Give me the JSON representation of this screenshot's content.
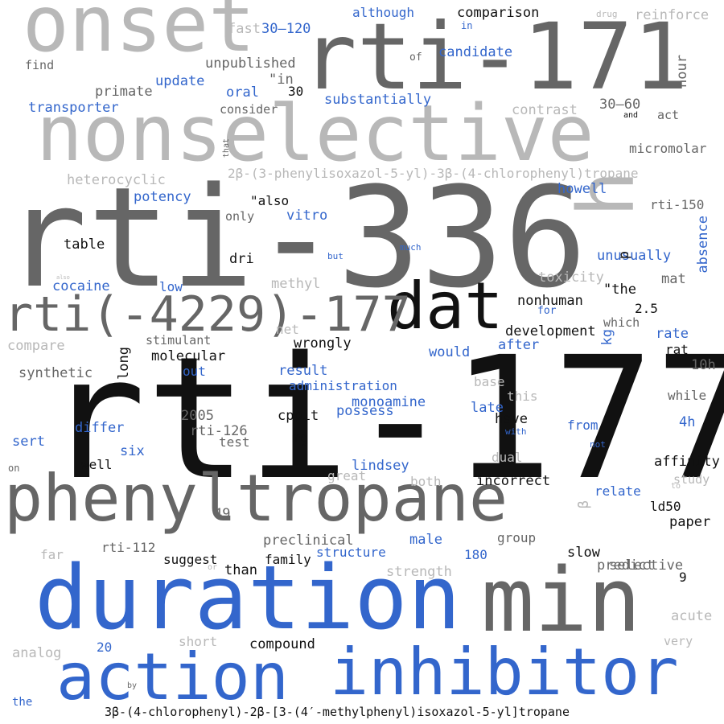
{
  "palette": {
    "black": "#111111",
    "dark_gray": "#666666",
    "light_gray": "#b8b8b8",
    "blue": "#3366cc"
  },
  "words": [
    {
      "text": "onset",
      "color": "light_gray"
    },
    {
      "text": "rti-171",
      "color": "dark_gray"
    },
    {
      "text": "nonselective",
      "color": "light_gray"
    },
    {
      "text": "rti-336",
      "color": "dark_gray"
    },
    {
      "text": "h",
      "color": "light_gray"
    },
    {
      "text": "dat",
      "color": "black"
    },
    {
      "text": "rti(-4229)-177",
      "color": "dark_gray"
    },
    {
      "text": "rti-177",
      "color": "black"
    },
    {
      "text": "phenyltropane",
      "color": "dark_gray"
    },
    {
      "text": "duration",
      "color": "blue"
    },
    {
      "text": "min",
      "color": "dark_gray"
    },
    {
      "text": "action",
      "color": "blue"
    },
    {
      "text": "inhibitor",
      "color": "blue"
    },
    {
      "text": "3β-(4-chlorophenyl)-2β-[3-(4′-methylphenyl)isoxazol-5-yl]tropane",
      "color": "black"
    },
    {
      "text": "2β-(3-phenylisoxazol-5-yl)-3β-(4-chlorophenyl)tropane",
      "color": "light_gray"
    },
    {
      "text": "although",
      "color": "blue"
    },
    {
      "text": "comparison",
      "color": "black"
    },
    {
      "text": "drug",
      "color": "light_gray"
    },
    {
      "text": "reinforce",
      "color": "light_gray"
    },
    {
      "text": "in",
      "color": "blue"
    },
    {
      "text": "fast",
      "color": "light_gray"
    },
    {
      "text": "30–120",
      "color": "blue"
    },
    {
      "text": "hour",
      "color": "dark_gray"
    },
    {
      "text": "find",
      "color": "dark_gray"
    },
    {
      "text": "of",
      "color": "dark_gray"
    },
    {
      "text": "candidate",
      "color": "blue"
    },
    {
      "text": "unpublished",
      "color": "dark_gray"
    },
    {
      "text": "\"in",
      "color": "dark_gray"
    },
    {
      "text": "update",
      "color": "blue"
    },
    {
      "text": "primate",
      "color": "dark_gray"
    },
    {
      "text": "oral",
      "color": "blue"
    },
    {
      "text": "30",
      "color": "black"
    },
    {
      "text": "substantially",
      "color": "blue"
    },
    {
      "text": "transporter",
      "color": "blue"
    },
    {
      "text": "consider",
      "color": "dark_gray"
    },
    {
      "text": "contrast",
      "color": "light_gray"
    },
    {
      "text": "30–60",
      "color": "dark_gray"
    },
    {
      "text": "and",
      "color": "black"
    },
    {
      "text": "act",
      "color": "dark_gray"
    },
    {
      "text": "that",
      "color": "dark_gray"
    },
    {
      "text": "micromolar",
      "color": "dark_gray"
    },
    {
      "text": "heterocyclic",
      "color": "light_gray"
    },
    {
      "text": "potency",
      "color": "blue"
    },
    {
      "text": "\"also",
      "color": "black"
    },
    {
      "text": "howell",
      "color": "blue"
    },
    {
      "text": "rti-150",
      "color": "dark_gray"
    },
    {
      "text": "only",
      "color": "dark_gray"
    },
    {
      "text": "vitro",
      "color": "blue"
    },
    {
      "text": "absence",
      "color": "blue"
    },
    {
      "text": "table",
      "color": "black"
    },
    {
      "text": "dri",
      "color": "black"
    },
    {
      "text": "but",
      "color": "blue"
    },
    {
      "text": "much",
      "color": "blue"
    },
    {
      "text": "unusually",
      "color": "blue"
    },
    {
      "text": "p",
      "color": "black"
    },
    {
      "text": "also",
      "color": "light_gray"
    },
    {
      "text": "cocaine",
      "color": "blue"
    },
    {
      "text": "low",
      "color": "blue"
    },
    {
      "text": "methyl",
      "color": "light_gray"
    },
    {
      "text": "toxicity",
      "color": "light_gray"
    },
    {
      "text": "mat",
      "color": "dark_gray"
    },
    {
      "text": "\"the",
      "color": "black"
    },
    {
      "text": "nonhuman",
      "color": "black"
    },
    {
      "text": "for",
      "color": "blue"
    },
    {
      "text": "2.5",
      "color": "black"
    },
    {
      "text": "which",
      "color": "dark_gray"
    },
    {
      "text": "net",
      "color": "light_gray"
    },
    {
      "text": "stimulant",
      "color": "dark_gray"
    },
    {
      "text": "development",
      "color": "black"
    },
    {
      "text": "kg",
      "color": "blue"
    },
    {
      "text": "rate",
      "color": "blue"
    },
    {
      "text": "compare",
      "color": "light_gray"
    },
    {
      "text": "wrongly",
      "color": "black"
    },
    {
      "text": "after",
      "color": "blue"
    },
    {
      "text": "rat",
      "color": "black"
    },
    {
      "text": "long",
      "color": "black"
    },
    {
      "text": "molecular",
      "color": "black"
    },
    {
      "text": "would",
      "color": "blue"
    },
    {
      "text": "synthetic",
      "color": "dark_gray"
    },
    {
      "text": "out",
      "color": "blue"
    },
    {
      "text": "result",
      "color": "blue"
    },
    {
      "text": "10h",
      "color": "dark_gray"
    },
    {
      "text": "administration",
      "color": "blue"
    },
    {
      "text": "base",
      "color": "light_gray"
    },
    {
      "text": "while",
      "color": "dark_gray"
    },
    {
      "text": "monoamine",
      "color": "blue"
    },
    {
      "text": "this",
      "color": "light_gray"
    },
    {
      "text": "late",
      "color": "blue"
    },
    {
      "text": "2005",
      "color": "dark_gray"
    },
    {
      "text": "cppit",
      "color": "black"
    },
    {
      "text": "possess",
      "color": "blue"
    },
    {
      "text": "have",
      "color": "black"
    },
    {
      "text": "4h",
      "color": "blue"
    },
    {
      "text": "differ",
      "color": "blue"
    },
    {
      "text": "from",
      "color": "blue"
    },
    {
      "text": "rti-126",
      "color": "dark_gray"
    },
    {
      "text": "test",
      "color": "dark_gray"
    },
    {
      "text": "with",
      "color": "blue"
    },
    {
      "text": "sert",
      "color": "blue"
    },
    {
      "text": "mg",
      "color": "black"
    },
    {
      "text": "six",
      "color": "blue"
    },
    {
      "text": "not",
      "color": "blue"
    },
    {
      "text": "dual",
      "color": "light_gray"
    },
    {
      "text": "well",
      "color": "black"
    },
    {
      "text": "lindsey",
      "color": "blue"
    },
    {
      "text": "affinity",
      "color": "black"
    },
    {
      "text": "on",
      "color": "dark_gray"
    },
    {
      "text": "great",
      "color": "light_gray"
    },
    {
      "text": "both",
      "color": "light_gray"
    },
    {
      "text": "incorrect",
      "color": "black"
    },
    {
      "text": "study",
      "color": "light_gray"
    },
    {
      "text": "to",
      "color": "light_gray"
    },
    {
      "text": "relate",
      "color": "blue"
    },
    {
      "text": "49",
      "color": "dark_gray"
    },
    {
      "text": "β",
      "color": "light_gray"
    },
    {
      "text": "ld50",
      "color": "black"
    },
    {
      "text": "group",
      "color": "dark_gray"
    },
    {
      "text": "paper",
      "color": "black"
    },
    {
      "text": "preclinical",
      "color": "dark_gray"
    },
    {
      "text": "male",
      "color": "blue"
    },
    {
      "text": "rti-112",
      "color": "dark_gray"
    },
    {
      "text": "far",
      "color": "light_gray"
    },
    {
      "text": "structure",
      "color": "blue"
    },
    {
      "text": "180",
      "color": "blue"
    },
    {
      "text": "slow",
      "color": "black"
    },
    {
      "text": "selective",
      "color": "dark_gray"
    },
    {
      "text": "suggest",
      "color": "black"
    },
    {
      "text": "family",
      "color": "black"
    },
    {
      "text": "predict",
      "color": "dark_gray"
    },
    {
      "text": "or",
      "color": "light_gray"
    },
    {
      "text": "than",
      "color": "black"
    },
    {
      "text": "strength",
      "color": "light_gray"
    },
    {
      "text": "9",
      "color": "black"
    },
    {
      "text": "acute",
      "color": "light_gray"
    },
    {
      "text": "analog",
      "color": "light_gray"
    },
    {
      "text": "20",
      "color": "blue"
    },
    {
      "text": "short",
      "color": "light_gray"
    },
    {
      "text": "compound",
      "color": "black"
    },
    {
      "text": "very",
      "color": "light_gray"
    },
    {
      "text": "by",
      "color": "dark_gray"
    },
    {
      "text": "the",
      "color": "blue"
    }
  ]
}
